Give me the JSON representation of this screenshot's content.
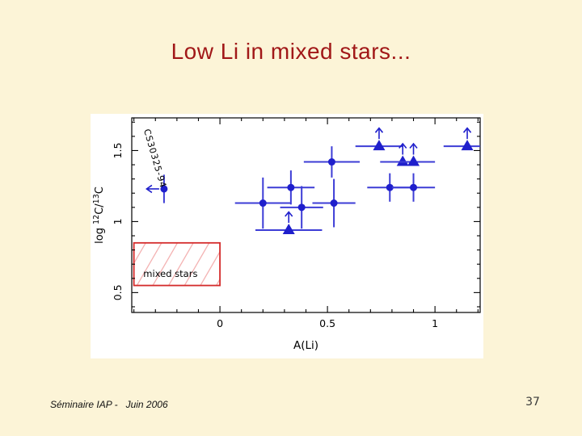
{
  "slide": {
    "title": "Low Li in mixed stars...",
    "footer": "Séminaire IAP -   Juin 2006",
    "page_number": "37",
    "colors": {
      "background": "#FCF4D7",
      "title": "#A11818",
      "axis": "#000000",
      "marker": "#1F1FCC",
      "error_bar": "#3D3DD6",
      "box_border": "#D42B2B",
      "box_hatch": "#F2AAAA"
    }
  },
  "chart_data": {
    "type": "scatter",
    "title": "",
    "xlabel": "A(Li)",
    "ylabel_parts": [
      {
        "t": "log "
      },
      {
        "t": "12",
        "sup": true
      },
      {
        "t": "C/"
      },
      {
        "t": "13",
        "sup": true
      },
      {
        "t": "C"
      }
    ],
    "xlim": [
      -0.41,
      1.21
    ],
    "ylim": [
      0.36,
      1.73
    ],
    "grid": false,
    "legend": null,
    "x_ticks": {
      "minor_step": 0.1,
      "majors": [
        {
          "v": 0,
          "label": "0"
        },
        {
          "v": 0.5,
          "label": "0.5"
        },
        {
          "v": 1,
          "label": "1"
        }
      ]
    },
    "y_ticks": {
      "minor_step": 0.1,
      "majors": [
        {
          "v": 0.5,
          "label": "0.5"
        },
        {
          "v": 1,
          "label": "1"
        },
        {
          "v": 1.5,
          "label": "1.5"
        }
      ]
    },
    "annotation_box": {
      "label": "mixed stars",
      "x0": -0.4,
      "x1": 0.0,
      "y0": 0.55,
      "y1": 0.85,
      "label_x": -0.23,
      "label_y": 0.61
    },
    "points": [
      {
        "x": -0.26,
        "y": 1.23,
        "marker": "circle",
        "yerr": 0.1,
        "x_upper_limit": true,
        "label": "CS30325-94"
      },
      {
        "x": 0.2,
        "y": 1.13,
        "marker": "circle",
        "xerr": 0.13,
        "yerr": 0.18
      },
      {
        "x": 0.33,
        "y": 1.24,
        "marker": "circle",
        "xerr": 0.11,
        "yerr": 0.12
      },
      {
        "x": 0.38,
        "y": 1.1,
        "marker": "circle",
        "xerr": 0.1,
        "yerr": 0.15
      },
      {
        "x": 0.53,
        "y": 1.13,
        "marker": "circle",
        "xerr": 0.1,
        "yerr": 0.17
      },
      {
        "x": 0.52,
        "y": 1.42,
        "marker": "circle",
        "xerr": 0.13,
        "yerr": 0.11
      },
      {
        "x": 0.79,
        "y": 1.24,
        "marker": "circle",
        "xerr": 0.105,
        "yerr": 0.1
      },
      {
        "x": 0.9,
        "y": 1.24,
        "marker": "circle",
        "xerr": 0.1,
        "yerr": 0.1
      },
      {
        "x": 0.32,
        "y": 0.94,
        "marker": "triangle",
        "xerr": 0.155,
        "y_lower_limit": true
      },
      {
        "x": 0.74,
        "y": 1.53,
        "marker": "triangle",
        "xerr": 0.11,
        "y_lower_limit": true
      },
      {
        "x": 0.85,
        "y": 1.42,
        "marker": "triangle",
        "xerr": 0.105,
        "y_lower_limit": true
      },
      {
        "x": 0.9,
        "y": 1.42,
        "marker": "triangle",
        "xerr": 0.1,
        "y_lower_limit": true
      },
      {
        "x": 1.15,
        "y": 1.53,
        "marker": "triangle",
        "xerr": 0.11,
        "y_lower_limit": true
      }
    ]
  }
}
